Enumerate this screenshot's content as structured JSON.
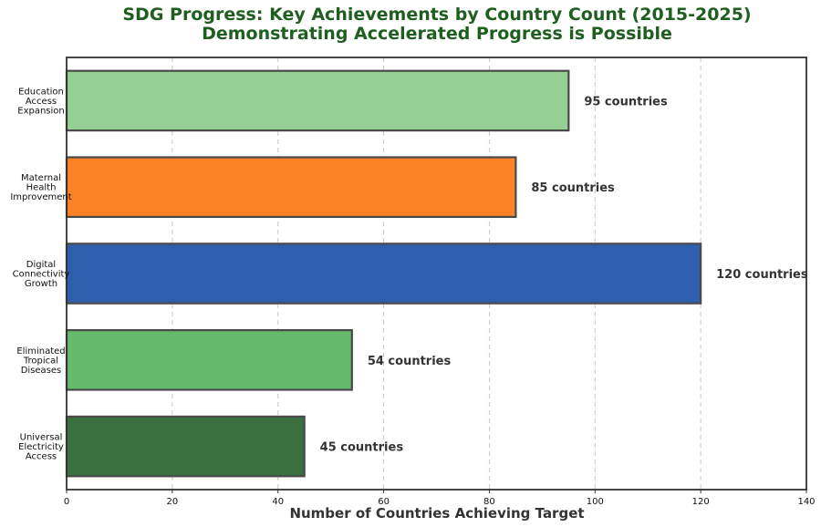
{
  "chart_data": {
    "type": "bar",
    "orientation": "horizontal",
    "title_lines": [
      "SDG Progress: Key Achievements by Country Count (2015-2025)",
      "Demonstrating Accelerated Progress is Possible"
    ],
    "xlabel": "Number of Countries Achieving Target",
    "xlim": [
      0,
      140
    ],
    "xticks": [
      0,
      20,
      40,
      60,
      80,
      100,
      120,
      140
    ],
    "grid": "vertical dashed",
    "bars": [
      {
        "label_lines": [
          "Education",
          "Access",
          "Expansion"
        ],
        "value": 95,
        "data_label": "95 countries",
        "color": "#95cf93"
      },
      {
        "label_lines": [
          "Maternal",
          "Health",
          "Improvement"
        ],
        "value": 85,
        "data_label": "85 countries",
        "color": "#fd8326"
      },
      {
        "label_lines": [
          "Digital",
          "Connectivity",
          "Growth"
        ],
        "value": 120,
        "data_label": "120 countries",
        "color": "#2e5faf"
      },
      {
        "label_lines": [
          "Eliminated",
          "Tropical",
          "Diseases"
        ],
        "value": 54,
        "data_label": "54 countries",
        "color": "#66bb6a"
      },
      {
        "label_lines": [
          "Universal",
          "Electricity",
          "Access"
        ],
        "value": 45,
        "data_label": "45 countries",
        "color": "#3a7040"
      }
    ]
  }
}
